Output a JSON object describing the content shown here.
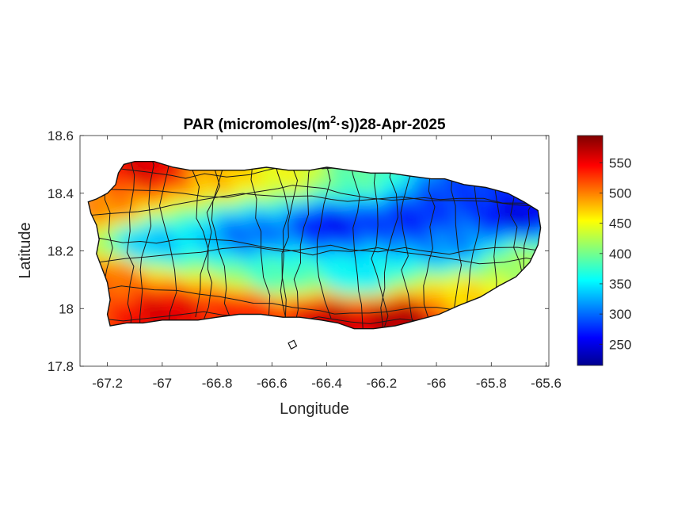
{
  "chart_data": {
    "type": "heatmap",
    "title": "PAR (micromoles/(m²·s))28-Apr-2025",
    "title_parts": {
      "prefix": "PAR (micromoles/(m",
      "superscript": "2",
      "suffix": "·s))28-Apr-2025"
    },
    "xlabel": "Longitude",
    "ylabel": "Latitude",
    "xlim": [
      -67.3,
      -65.59
    ],
    "ylim": [
      17.8,
      18.6
    ],
    "xticks": [
      -67.2,
      -67,
      -66.8,
      -66.6,
      -66.4,
      -66.2,
      -66,
      -65.8,
      -65.6
    ],
    "xtick_labels": [
      "-67.2",
      "-67",
      "-66.8",
      "-66.6",
      "-66.4",
      "-66.2",
      "-66",
      "-65.8",
      "-65.6"
    ],
    "yticks": [
      17.8,
      18,
      18.2,
      18.4,
      18.6
    ],
    "ytick_labels": [
      "17.8",
      "18",
      "18.2",
      "18.4",
      "18.6"
    ],
    "colorbar": {
      "range": [
        215,
        595
      ],
      "ticks": [
        250,
        300,
        350,
        400,
        450,
        500,
        550
      ],
      "tick_labels": [
        "250",
        "300",
        "350",
        "400",
        "450",
        "500",
        "550"
      ],
      "colormap": "jet",
      "colors": [
        "#00008f",
        "#0000ff",
        "#00ffff",
        "#ffff00",
        "#ff0000",
        "#800000"
      ]
    },
    "island_outline_lonlat": [
      [
        -67.27,
        18.37
      ],
      [
        -67.24,
        18.38
      ],
      [
        -67.2,
        18.4
      ],
      [
        -67.17,
        18.43
      ],
      [
        -67.16,
        18.47
      ],
      [
        -67.14,
        18.5
      ],
      [
        -67.1,
        18.51
      ],
      [
        -67.03,
        18.51
      ],
      [
        -66.96,
        18.49
      ],
      [
        -66.9,
        18.48
      ],
      [
        -66.82,
        18.48
      ],
      [
        -66.75,
        18.48
      ],
      [
        -66.7,
        18.48
      ],
      [
        -66.62,
        18.49
      ],
      [
        -66.54,
        18.48
      ],
      [
        -66.46,
        18.48
      ],
      [
        -66.4,
        18.49
      ],
      [
        -66.32,
        18.48
      ],
      [
        -66.24,
        18.47
      ],
      [
        -66.17,
        18.47
      ],
      [
        -66.1,
        18.46
      ],
      [
        -66.02,
        18.45
      ],
      [
        -65.97,
        18.45
      ],
      [
        -65.9,
        18.43
      ],
      [
        -65.82,
        18.42
      ],
      [
        -65.74,
        18.4
      ],
      [
        -65.68,
        18.37
      ],
      [
        -65.63,
        18.34
      ],
      [
        -65.62,
        18.28
      ],
      [
        -65.63,
        18.22
      ],
      [
        -65.66,
        18.16
      ],
      [
        -65.71,
        18.11
      ],
      [
        -65.77,
        18.08
      ],
      [
        -65.84,
        18.04
      ],
      [
        -65.92,
        18.01
      ],
      [
        -65.99,
        17.98
      ],
      [
        -66.07,
        17.96
      ],
      [
        -66.15,
        17.94
      ],
      [
        -66.23,
        17.93
      ],
      [
        -66.3,
        17.93
      ],
      [
        -66.36,
        17.95
      ],
      [
        -66.42,
        17.96
      ],
      [
        -66.5,
        17.97
      ],
      [
        -66.56,
        17.97
      ],
      [
        -66.64,
        17.98
      ],
      [
        -66.72,
        17.98
      ],
      [
        -66.8,
        17.97
      ],
      [
        -66.87,
        17.96
      ],
      [
        -66.93,
        17.96
      ],
      [
        -67.0,
        17.96
      ],
      [
        -67.07,
        17.95
      ],
      [
        -67.13,
        17.95
      ],
      [
        -67.19,
        17.94
      ],
      [
        -67.2,
        17.98
      ],
      [
        -67.19,
        18.03
      ],
      [
        -67.2,
        18.09
      ],
      [
        -67.22,
        18.14
      ],
      [
        -67.24,
        18.19
      ],
      [
        -67.23,
        18.24
      ],
      [
        -67.24,
        18.29
      ],
      [
        -67.26,
        18.33
      ]
    ],
    "small_islands_lonlat": [
      [
        [
          -66.54,
          17.88
        ],
        [
          -66.52,
          17.89
        ],
        [
          -66.51,
          17.87
        ],
        [
          -66.53,
          17.86
        ]
      ]
    ],
    "par_field_anchors": [
      {
        "lon": -67.05,
        "lat": 18.48,
        "value": 560
      },
      {
        "lon": -66.8,
        "lat": 18.46,
        "value": 480
      },
      {
        "lon": -66.55,
        "lat": 18.46,
        "value": 450
      },
      {
        "lon": -66.3,
        "lat": 18.45,
        "value": 390
      },
      {
        "lon": -65.9,
        "lat": 18.39,
        "value": 280
      },
      {
        "lon": -65.72,
        "lat": 18.32,
        "value": 250
      },
      {
        "lon": -65.7,
        "lat": 18.15,
        "value": 420
      },
      {
        "lon": -67.22,
        "lat": 18.35,
        "value": 500
      },
      {
        "lon": -67.2,
        "lat": 18.1,
        "value": 510
      },
      {
        "lon": -67.05,
        "lat": 18.22,
        "value": 330
      },
      {
        "lon": -66.7,
        "lat": 18.25,
        "value": 300
      },
      {
        "lon": -66.4,
        "lat": 18.28,
        "value": 260
      },
      {
        "lon": -66.1,
        "lat": 18.3,
        "value": 270
      },
      {
        "lon": -65.95,
        "lat": 18.22,
        "value": 310
      },
      {
        "lon": -66.6,
        "lat": 18.1,
        "value": 380
      },
      {
        "lon": -66.3,
        "lat": 18.1,
        "value": 350
      },
      {
        "lon": -67.0,
        "lat": 17.98,
        "value": 560
      },
      {
        "lon": -66.7,
        "lat": 17.99,
        "value": 540
      },
      {
        "lon": -66.4,
        "lat": 17.97,
        "value": 570
      },
      {
        "lon": -66.15,
        "lat": 17.96,
        "value": 580
      },
      {
        "lon": -65.9,
        "lat": 18.03,
        "value": 470
      }
    ]
  }
}
